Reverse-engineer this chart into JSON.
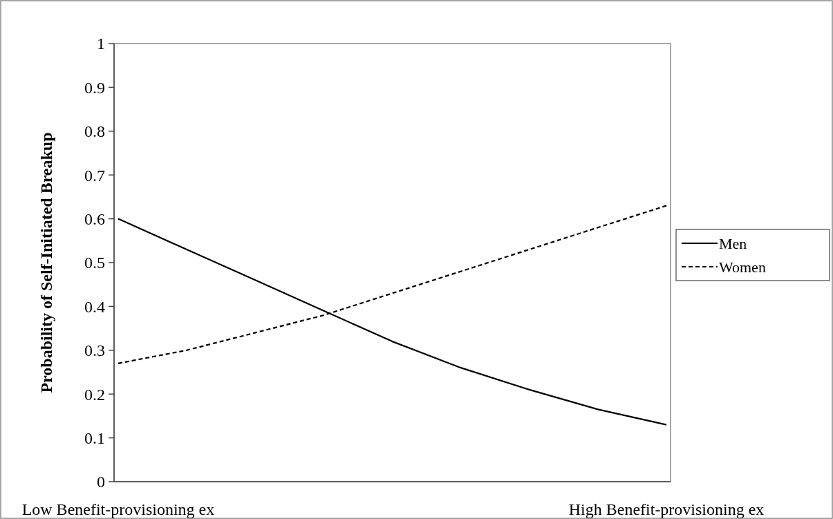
{
  "chart_data": {
    "type": "line",
    "ylabel": "Probability of Self-Initiated Breakup",
    "categories": [
      "Low Benefit-provisioning ex",
      null,
      null,
      null,
      null,
      null,
      null,
      null,
      "High Benefit-provisioning ex"
    ],
    "series": [
      {
        "name": "Men",
        "color": "#000000",
        "line_style": "solid",
        "values": [
          0.6,
          0.53,
          0.46,
          0.39,
          0.32,
          0.26,
          0.21,
          0.165,
          0.13
        ]
      },
      {
        "name": "Women",
        "color": "#000000",
        "line_style": "dashed",
        "values": [
          0.27,
          0.3,
          0.34,
          0.38,
          0.43,
          0.48,
          0.53,
          0.58,
          0.63
        ]
      }
    ],
    "ylim": [
      0,
      1
    ],
    "yticks": [
      0,
      0.1,
      0.2,
      0.3,
      0.4,
      0.5,
      0.6,
      0.7,
      0.8,
      0.9,
      1
    ],
    "grid": false,
    "legend": "right",
    "marker": "none"
  }
}
